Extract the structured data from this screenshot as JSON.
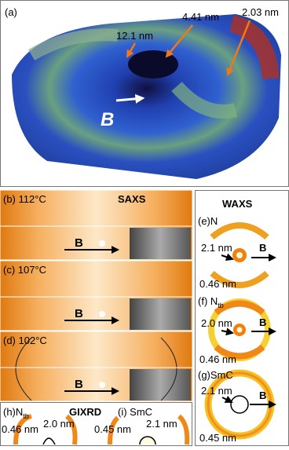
{
  "panel_a": {
    "label": "(a)",
    "annotations": [
      "12.1 nm",
      "4.41 nm",
      "2.03 nm"
    ],
    "field": "B"
  },
  "saxs": {
    "title": "SAXS",
    "panels": [
      {
        "label": "(b) 112°C",
        "field": "B"
      },
      {
        "label": "(c) 107°C",
        "field": "B"
      },
      {
        "label": "(d) 102°C",
        "field": "B"
      }
    ]
  },
  "waxs": {
    "title": "WAXS",
    "panels": [
      {
        "label": "(e)N",
        "small": "2.1 nm",
        "wide": "0.46 nm",
        "field": "B"
      },
      {
        "label": "(f) N",
        "subscript": "tb",
        "small": "2.0 nm",
        "wide": "0.46 nm",
        "field": "B"
      },
      {
        "label": "(g)SmC",
        "small": "2.1 nm",
        "wide": "0.45 nm",
        "field": "B"
      }
    ]
  },
  "gixrd": {
    "title": "GIXRD",
    "panels": [
      {
        "label": "(h)N",
        "subscript": "tb",
        "wide": "0.46 nm",
        "small": "2.0 nm"
      },
      {
        "label": "(i) SmC",
        "wide": "0.45 nm",
        "small": "2.1 nm"
      }
    ]
  }
}
